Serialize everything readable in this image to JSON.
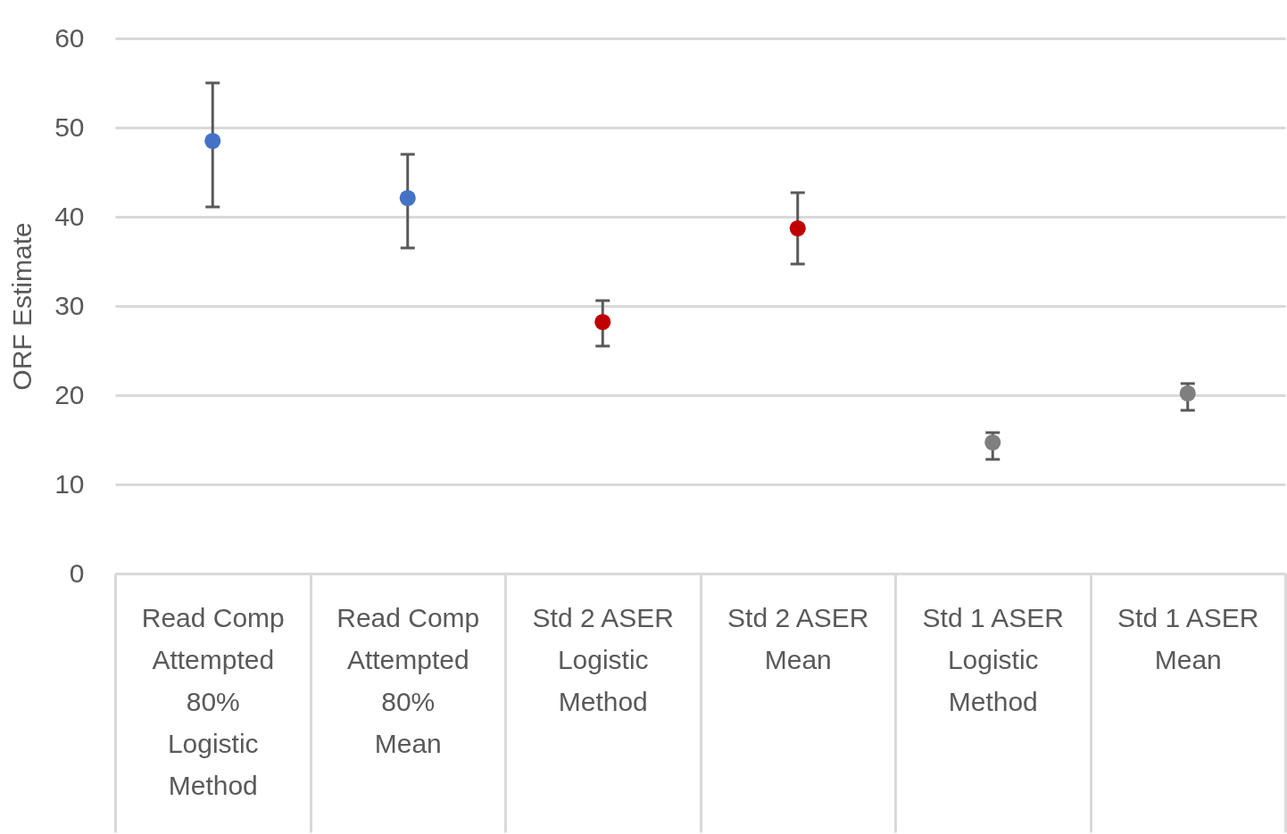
{
  "chart_data": {
    "type": "scatter",
    "ylabel": "ORF Estimate",
    "categories": [
      "Read Comp\nAttempted\n80%\nLogistic\nMethod",
      "Read Comp\nAttempted\n80%\nMean",
      "Std 2 ASER\nLogistic\nMethod",
      "Std 2 ASER\nMean",
      "Std 1 ASER\nLogistic\nMethod",
      "Std 1 ASER\nMean"
    ],
    "values": [
      48.5,
      42.1,
      28.2,
      38.7,
      14.7,
      20.2
    ],
    "errors": [
      [
        41.1,
        55.0
      ],
      [
        36.5,
        47.0
      ],
      [
        25.5,
        30.6
      ],
      [
        34.7,
        42.7
      ],
      [
        12.8,
        15.8
      ],
      [
        18.3,
        21.3
      ]
    ],
    "colors": [
      "#4472c4",
      "#4472c4",
      "#c00000",
      "#c00000",
      "#7f7f7f",
      "#7f7f7f"
    ],
    "ylim": [
      0,
      60
    ],
    "yticks": [
      0,
      10,
      20,
      30,
      40,
      50,
      60
    ],
    "grid": "y",
    "marker": "circle",
    "legend": false
  }
}
